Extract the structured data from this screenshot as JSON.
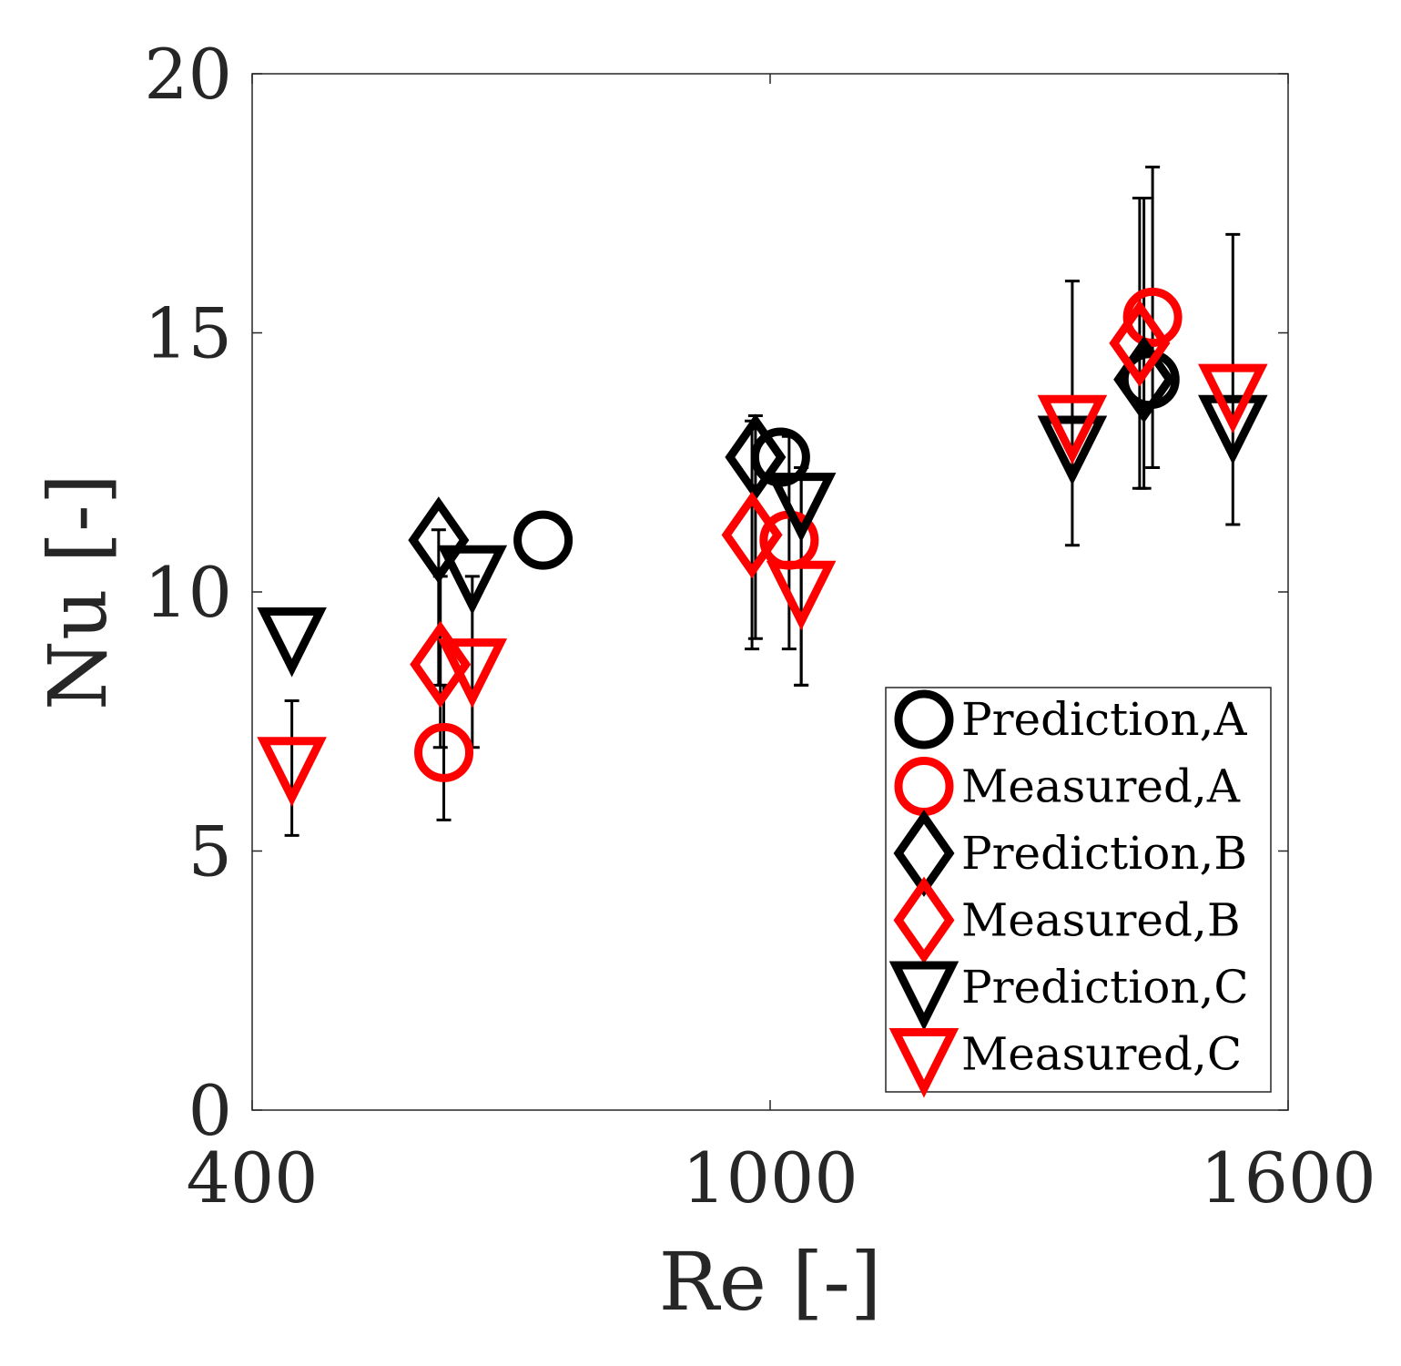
{
  "chart_data": {
    "type": "scatter",
    "xlabel": "Re [-]",
    "ylabel": "Nu [-]",
    "xlim": [
      400,
      1600
    ],
    "ylim": [
      0,
      20
    ],
    "xticks": [
      "400",
      "1000",
      "1600"
    ],
    "xtick_values": [
      400,
      1000,
      1600
    ],
    "yticks": [
      "0",
      "5",
      "10",
      "15",
      "20"
    ],
    "ytick_values": [
      0,
      5,
      10,
      15,
      20
    ],
    "grid": false,
    "legend_position": "bottom-right",
    "series": [
      {
        "name": "Prediction,A",
        "marker": "circle",
        "color": "#000000",
        "points": [
          {
            "x": 737,
            "y": 11.0
          },
          {
            "x": 1012,
            "y": 12.6
          },
          {
            "x": 1440,
            "y": 14.1
          }
        ],
        "errors": []
      },
      {
        "name": "Measured,A",
        "marker": "circle",
        "color": "#ff0000",
        "points": [
          {
            "x": 622,
            "y": 6.9
          },
          {
            "x": 1022,
            "y": 11.0
          },
          {
            "x": 1443,
            "y": 15.3
          }
        ],
        "errors": [
          {
            "x": 622,
            "low": 5.6,
            "high": 8.2
          },
          {
            "x": 1022,
            "low": 8.9,
            "high": 13.0
          },
          {
            "x": 1443,
            "low": 12.4,
            "high": 18.2
          }
        ]
      },
      {
        "name": "Prediction,B",
        "marker": "diamond",
        "color": "#000000",
        "points": [
          {
            "x": 616,
            "y": 11.0
          },
          {
            "x": 983,
            "y": 12.6
          },
          {
            "x": 1433,
            "y": 14.1
          }
        ],
        "errors": [
          {
            "x": 616,
            "low": 8.2,
            "high": 11.2
          },
          {
            "x": 983,
            "low": 9.1,
            "high": 13.4
          },
          {
            "x": 1433,
            "low": 12.0,
            "high": 17.6
          }
        ]
      },
      {
        "name": "Measured,B",
        "marker": "diamond",
        "color": "#ff0000",
        "points": [
          {
            "x": 618,
            "y": 8.6
          },
          {
            "x": 979,
            "y": 11.1
          },
          {
            "x": 1428,
            "y": 14.8
          }
        ],
        "errors": [
          {
            "x": 618,
            "low": 7.0,
            "high": 10.3
          },
          {
            "x": 979,
            "low": 8.9,
            "high": 13.3
          },
          {
            "x": 1428,
            "low": 12.0,
            "high": 17.6
          }
        ]
      },
      {
        "name": "Prediction,C",
        "marker": "triangle-down",
        "color": "#000000",
        "points": [
          {
            "x": 446,
            "y": 9.2
          },
          {
            "x": 655,
            "y": 10.4
          },
          {
            "x": 1036,
            "y": 11.8
          },
          {
            "x": 1350,
            "y": 12.9
          },
          {
            "x": 1536,
            "y": 13.3
          }
        ],
        "errors": [
          {
            "x": 655,
            "low": 7.0,
            "high": 10.3
          },
          {
            "x": 1036,
            "low": 8.2,
            "high": 12.4
          },
          {
            "x": 1350,
            "low": 10.9,
            "high": 16.0
          },
          {
            "x": 1536,
            "low": 11.3,
            "high": 16.9
          }
        ]
      },
      {
        "name": "Measured,C",
        "marker": "triangle-down",
        "color": "#ff0000",
        "points": [
          {
            "x": 446,
            "y": 6.7
          },
          {
            "x": 655,
            "y": 8.6
          },
          {
            "x": 1036,
            "y": 10.1
          },
          {
            "x": 1350,
            "y": 13.3
          },
          {
            "x": 1536,
            "y": 13.9
          }
        ],
        "errors": [
          {
            "x": 446,
            "low": 5.3,
            "high": 7.9
          },
          {
            "x": 1036,
            "low": 8.2,
            "high": 12.4
          }
        ]
      }
    ]
  }
}
